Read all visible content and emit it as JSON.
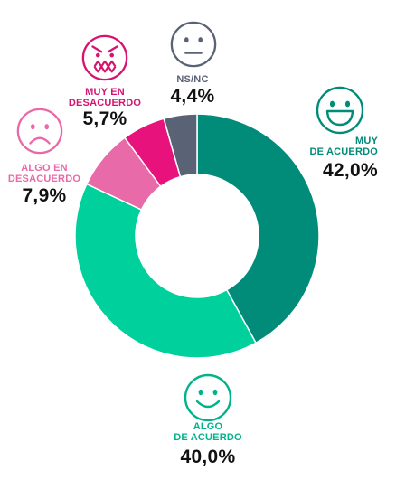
{
  "chart_data": {
    "type": "pie",
    "donut": true,
    "slices": [
      {
        "label_lines": [
          "MUY",
          "DE ACUERDO"
        ],
        "value_text": "42,0%",
        "value": 42.0,
        "color": "#008c78",
        "label_color": "#008c78",
        "icon": "big-smile-face-icon"
      },
      {
        "label_lines": [
          "ALGO",
          "DE ACUERDO"
        ],
        "value_text": "40,0%",
        "value": 40.0,
        "color": "#00d09c",
        "label_color": "#00b38a",
        "icon": "smile-face-icon"
      },
      {
        "label_lines": [
          "ALGO EN",
          "DESACUERDO"
        ],
        "value_text": "7,9%",
        "value": 7.9,
        "color": "#e86aa8",
        "label_color": "#e86aa8",
        "icon": "frown-face-icon"
      },
      {
        "label_lines": [
          "MUY EN",
          "DESACUERDO"
        ],
        "value_text": "5,7%",
        "value": 5.7,
        "color": "#e8127c",
        "label_color": "#d6136f",
        "icon": "angry-face-icon"
      },
      {
        "label_lines": [
          "NS/NC"
        ],
        "value_text": "4,4%",
        "value": 4.4,
        "color": "#5a6275",
        "label_color": "#5a6275",
        "icon": "neutral-face-icon"
      }
    ]
  }
}
